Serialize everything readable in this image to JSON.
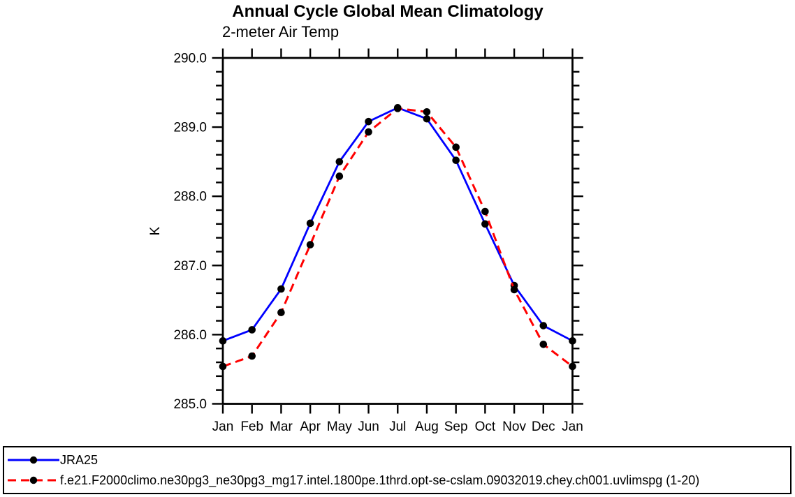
{
  "page": {
    "background": "#ffffff",
    "frame_color": "#000000"
  },
  "chart_data": {
    "type": "line",
    "title": "Annual Cycle Global Mean Climatology",
    "subtitle": "2-meter Air Temp",
    "xlabel": "",
    "ylabel": "K",
    "categories": [
      "Jan",
      "Feb",
      "Mar",
      "Apr",
      "May",
      "Jun",
      "Jul",
      "Aug",
      "Sep",
      "Oct",
      "Nov",
      "Dec",
      "Jan"
    ],
    "ylim": [
      285.0,
      290.0
    ],
    "ytick_major_interval": 1.0,
    "ytick_minor_interval": 0.2,
    "ytick_labels": [
      "285.0",
      "286.0",
      "287.0",
      "288.0",
      "289.0",
      "290.0"
    ],
    "grid": false,
    "legend_position": "bottom-outside-framed",
    "marker": {
      "shape": "filled-circle",
      "color": "#000000",
      "radius": 5.3
    },
    "series": [
      {
        "name": "JRA25",
        "color": "#0000ff",
        "line_style": "solid",
        "values": [
          285.91,
          286.07,
          286.66,
          287.61,
          288.5,
          289.08,
          289.28,
          289.12,
          288.52,
          287.6,
          286.71,
          286.13,
          285.91
        ]
      },
      {
        "name": "f.e21.F2000climo.ne30pg3_ne30pg3_mg17.intel.1800pe.1thrd.opt-se-cslam.09032019.chey.ch001.uvlimspg (1-20)",
        "color": "#ff0000",
        "line_style": "dashed",
        "values": [
          285.54,
          285.69,
          286.32,
          287.3,
          288.29,
          288.93,
          289.27,
          289.22,
          288.71,
          287.78,
          286.65,
          285.86,
          285.54
        ]
      }
    ]
  }
}
